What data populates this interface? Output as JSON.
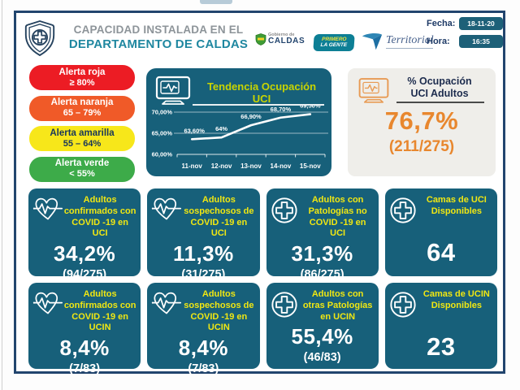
{
  "header": {
    "title_line1": "CAPACIDAD INSTALADA EN EL",
    "title_line2": "DEPARTAMENTO DE CALDAS",
    "gobierno": {
      "small": "Gobierno de",
      "big": "CALDAS"
    },
    "primero": {
      "line1": "PRIMERO",
      "line2": "LA GENTE"
    },
    "territorial": {
      "name": "Territorial"
    },
    "fecha_label": "Fecha:",
    "fecha_value": "18-11-20",
    "hora_label": "Hora:",
    "hora_value": "16:35"
  },
  "alerts": [
    {
      "label": "Alerta roja",
      "range": "≥ 80%",
      "bg": "#ec1c24",
      "fg": "#ffffff"
    },
    {
      "label": "Alerta naranja",
      "range": "65 – 79%",
      "bg": "#f05a28",
      "fg": "#ffffff"
    },
    {
      "label": "Alerta amarilla",
      "range": "55 – 64%",
      "bg": "#f7e71a",
      "fg": "#17365c"
    },
    {
      "label": "Alerta verde",
      "range": "< 55%",
      "bg": "#3dab49",
      "fg": "#ffffff"
    }
  ],
  "chart_data": {
    "type": "line",
    "title": "Tendencia Ocupación UCI",
    "x": [
      "11-nov",
      "12-nov",
      "13-nov",
      "14-nov",
      "15-nov"
    ],
    "series": [
      {
        "name": "Ocupación UCI",
        "values": [
          63.6,
          64.0,
          66.9,
          68.7,
          69.5
        ]
      }
    ],
    "point_labels": [
      "63,60%",
      "64%",
      "66,90%",
      "68,70%",
      "69,50%"
    ],
    "y_ticks": [
      {
        "value": 70,
        "label": "70,00%"
      },
      {
        "value": 65,
        "label": "65,00%"
      },
      {
        "value": 60,
        "label": "60,00%"
      }
    ],
    "ylim": [
      60,
      72.5
    ],
    "grid": true,
    "legend": "none",
    "line_color": "#ffffff",
    "xlabel": "",
    "ylabel": ""
  },
  "occupancy": {
    "title_line1": "% Ocupación",
    "title_line2": "UCI Adultos",
    "value": "76,7%",
    "ratio": "(211/275)",
    "accent": "#e8872e"
  },
  "cards": [
    {
      "icon": "heart-pulse-icon",
      "title": "Adultos confirmados con COVID -19 en UCI",
      "value": "34,2%",
      "sub": "(94/275)"
    },
    {
      "icon": "heart-pulse-icon",
      "title": "Adultos sospechosos de COVID -19 en UCI",
      "value": "11,3%",
      "sub": "(31/275)"
    },
    {
      "icon": "cross-circle-icon",
      "title": "Adultos con Patologías no COVID -19 en UCI",
      "value": "31,3%",
      "sub": "(86/275)"
    },
    {
      "icon": "cross-circle-icon",
      "title": "Camas de UCI Disponibles",
      "value": "64",
      "sub": ""
    },
    {
      "icon": "heart-pulse-icon",
      "title": "Adultos confirmados con COVID -19 en UCIN",
      "value": "8,4%",
      "sub": "(7/83)"
    },
    {
      "icon": "heart-pulse-icon",
      "title": "Adultos sospechosos de COVID -19 en UCIN",
      "value": "8,4%",
      "sub": "(7/83)"
    },
    {
      "icon": "cross-circle-icon",
      "title": "Adultos con otras Patologías en UCIN",
      "value": "55,4%",
      "sub": "(46/83)"
    },
    {
      "icon": "cross-circle-icon",
      "title": "Camas de UCIN Disponibles",
      "value": "23",
      "sub": ""
    }
  ],
  "colors": {
    "card_bg": "#17607a",
    "card_title": "#f0e712",
    "chart_title": "#c8d400",
    "border_navy": "#22456e",
    "header_teal": "#1f87a0",
    "accent_orange": "#e8872e"
  }
}
